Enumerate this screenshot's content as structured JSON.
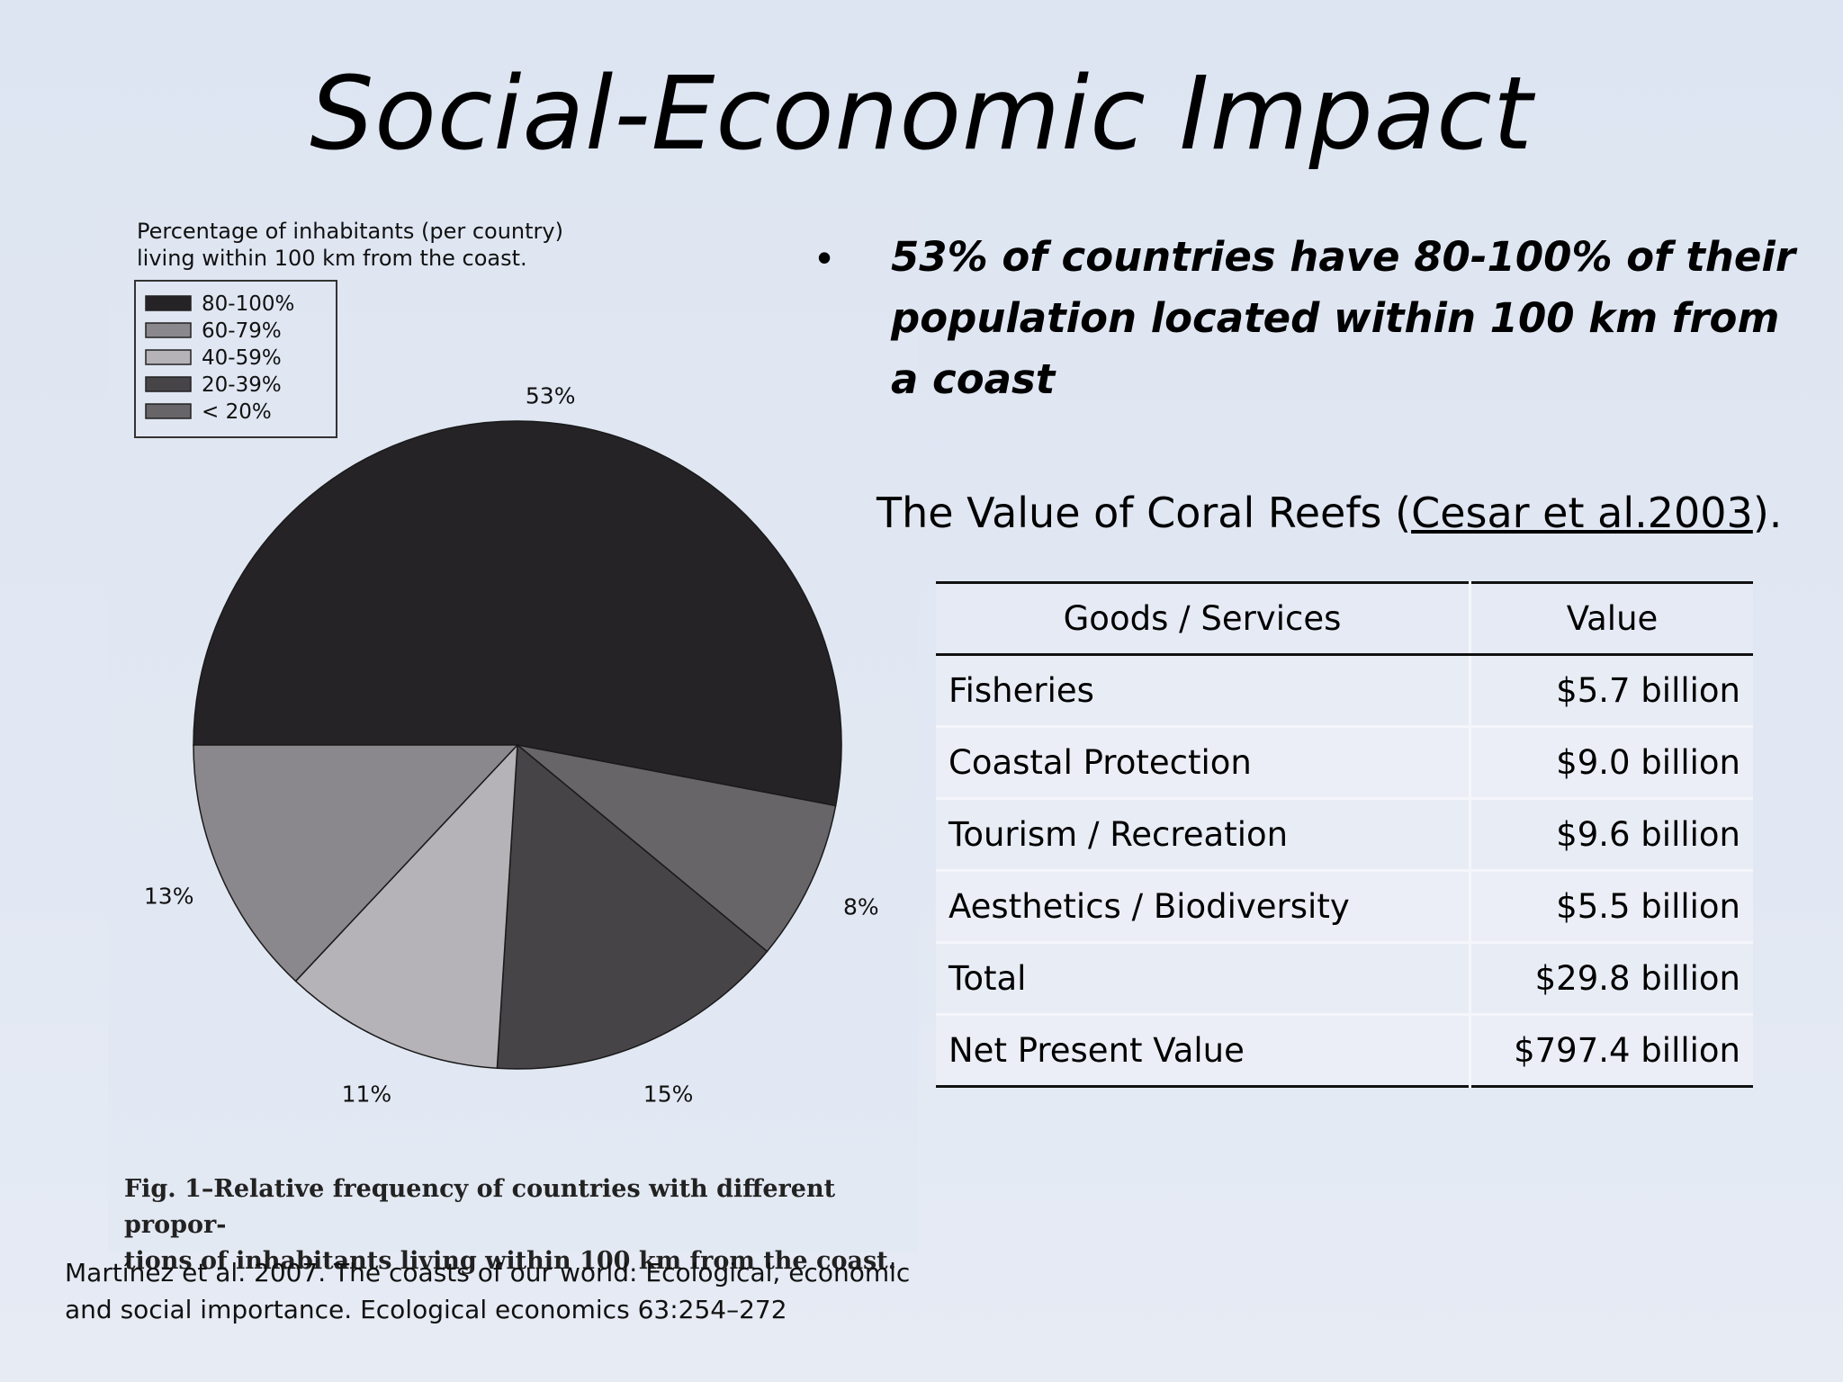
{
  "slide": {
    "title": "Social-Economic Impact"
  },
  "chart_data": {
    "type": "pie",
    "title": "Percentage of inhabitants (per country) living within 100 km from the coast.",
    "title_lines": [
      "Percentage of inhabitants (per country)",
      "living within 100 km from the coast."
    ],
    "legend": [
      "80-100%",
      "60-79%",
      "40-59%",
      "20-39%",
      "< 20%"
    ],
    "legend_position": "top-left",
    "slices": [
      {
        "label": "80-100%",
        "value": 53,
        "value_label": "53%",
        "color": "#252326"
      },
      {
        "label": "< 20%",
        "value": 8,
        "value_label": "8%",
        "color": "#686569"
      },
      {
        "label": "20-39%",
        "value": 15,
        "value_label": "15%",
        "color": "#464447"
      },
      {
        "label": "40-59%",
        "value": 11,
        "value_label": "11%",
        "color": "#b5b3b7"
      },
      {
        "label": "60-79%",
        "value": 13,
        "value_label": "13%",
        "color": "#8a888c"
      }
    ],
    "legend_colors": [
      "#252326",
      "#8a888c",
      "#b5b3b7",
      "#464447",
      "#686569"
    ]
  },
  "figure": {
    "caption_lines": [
      "Fig. 1–Relative frequency of countries with different propor-",
      "tions of inhabitants living within 100 km from the coast."
    ],
    "citation_lines": [
      "Martínez et al. 2007. The coasts of our world: Ecological, economic",
      "and social importance. Ecological economics 63:254–272"
    ]
  },
  "bullet": {
    "marker": "•",
    "text": "53% of countries have 80-100% of their population located within 100 km from a coast"
  },
  "coral": {
    "heading_prefix": "The Value of Coral Reefs (",
    "heading_link": "Cesar et al.2003",
    "heading_suffix": ").",
    "table": {
      "headers": [
        "Goods / Services",
        "Value"
      ],
      "rows": [
        {
          "item": "Fisheries",
          "value": "$5.7 billion"
        },
        {
          "item": "Coastal Protection",
          "value": "$9.0 billion"
        },
        {
          "item": "Tourism / Recreation",
          "value": "$9.6 billion"
        },
        {
          "item": "Aesthetics / Biodiversity",
          "value": "$5.5 billion"
        },
        {
          "item": "Total",
          "value": "$29.8 billion"
        },
        {
          "item": "Net Present Value",
          "value": "$797.4 billion"
        }
      ]
    }
  }
}
